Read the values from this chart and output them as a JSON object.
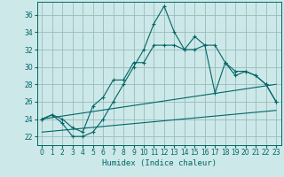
{
  "xlabel": "Humidex (Indice chaleur)",
  "bg_color": "#cde8e8",
  "grid_color": "#99bbbb",
  "line_color": "#006666",
  "xlim": [
    -0.5,
    23.5
  ],
  "ylim": [
    21.0,
    37.5
  ],
  "xticks": [
    0,
    1,
    2,
    3,
    4,
    5,
    6,
    7,
    8,
    9,
    10,
    11,
    12,
    13,
    14,
    15,
    16,
    17,
    18,
    19,
    20,
    21,
    22,
    23
  ],
  "yticks": [
    22,
    24,
    26,
    28,
    30,
    32,
    34,
    36
  ],
  "hours": [
    0,
    1,
    2,
    3,
    4,
    5,
    6,
    7,
    8,
    9,
    10,
    11,
    12,
    13,
    14,
    15,
    16,
    17,
    18,
    19,
    20,
    21,
    22,
    23
  ],
  "line1": [
    24.0,
    24.5,
    24.0,
    23.0,
    22.5,
    25.5,
    26.5,
    28.5,
    28.5,
    30.5,
    30.5,
    32.5,
    32.5,
    32.5,
    32.0,
    33.5,
    32.5,
    32.5,
    30.5,
    29.5,
    29.5,
    29.0,
    28.0,
    26.0
  ],
  "line2": [
    24.0,
    24.5,
    23.5,
    22.0,
    22.0,
    22.5,
    24.0,
    26.0,
    28.0,
    30.0,
    32.0,
    35.0,
    37.0,
    34.0,
    32.0,
    32.0,
    32.5,
    27.0,
    30.5,
    29.0,
    29.5,
    29.0,
    28.0,
    26.0
  ],
  "line3_x": [
    0,
    23
  ],
  "line3_y": [
    24.0,
    28.0
  ],
  "line4_x": [
    0,
    23
  ],
  "line4_y": [
    22.5,
    25.0
  ]
}
